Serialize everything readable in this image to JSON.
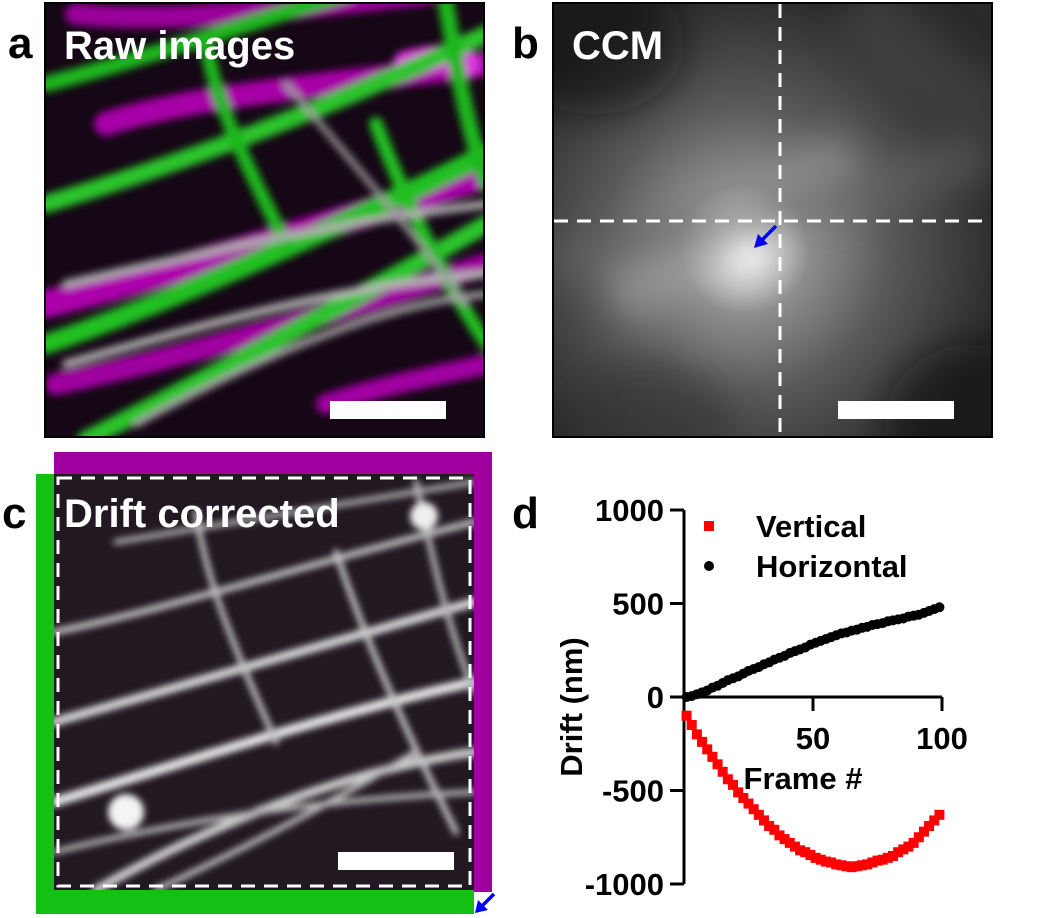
{
  "panels": {
    "a": {
      "letter": "a",
      "title": "Raw images"
    },
    "b": {
      "letter": "b",
      "title": "CCM"
    },
    "c": {
      "letter": "c",
      "title": "Drift corrected"
    },
    "d": {
      "letter": "d"
    }
  },
  "colors": {
    "magenta": "#d000d0",
    "green": "#20e020",
    "arrow": "#0000ff",
    "vertical": "#ff0000",
    "horizontal": "#000000"
  },
  "chart_data": {
    "type": "scatter",
    "xlabel": "Frame #",
    "ylabel": "Drift (nm)",
    "xlim": [
      0,
      100
    ],
    "ylim": [
      -1000,
      1000
    ],
    "x_ticks": [
      50,
      100
    ],
    "y_ticks": [
      1000,
      500,
      0,
      -500,
      -1000
    ],
    "legend_position": "top",
    "series": [
      {
        "name": "Vertical",
        "marker": "square",
        "color": "#ff0000",
        "x": [
          1,
          3,
          5,
          7,
          9,
          11,
          13,
          15,
          17,
          19,
          21,
          23,
          25,
          27,
          29,
          31,
          33,
          35,
          37,
          39,
          41,
          43,
          45,
          47,
          49,
          51,
          53,
          55,
          57,
          59,
          61,
          63,
          65,
          67,
          69,
          71,
          73,
          75,
          77,
          79,
          81,
          83,
          85,
          87,
          89,
          91,
          93,
          95,
          97,
          99
        ],
        "y": [
          -100,
          -150,
          -200,
          -240,
          -280,
          -320,
          -360,
          -400,
          -440,
          -470,
          -510,
          -540,
          -570,
          -600,
          -630,
          -660,
          -690,
          -710,
          -740,
          -760,
          -780,
          -800,
          -820,
          -830,
          -845,
          -860,
          -870,
          -880,
          -885,
          -895,
          -900,
          -905,
          -910,
          -905,
          -900,
          -895,
          -885,
          -875,
          -870,
          -860,
          -850,
          -830,
          -815,
          -800,
          -780,
          -750,
          -720,
          -690,
          -660,
          -630
        ]
      },
      {
        "name": "Horizontal",
        "marker": "circle",
        "color": "#000000",
        "x": [
          1,
          3,
          5,
          7,
          9,
          11,
          13,
          15,
          17,
          19,
          21,
          23,
          25,
          27,
          29,
          31,
          33,
          35,
          37,
          39,
          41,
          43,
          45,
          47,
          49,
          51,
          53,
          55,
          57,
          59,
          61,
          63,
          65,
          67,
          69,
          71,
          73,
          75,
          77,
          79,
          81,
          83,
          85,
          87,
          89,
          91,
          93,
          95,
          97,
          99
        ],
        "y": [
          0,
          5,
          15,
          25,
          35,
          50,
          60,
          75,
          90,
          100,
          110,
          125,
          140,
          150,
          160,
          175,
          185,
          200,
          210,
          220,
          235,
          245,
          255,
          265,
          280,
          290,
          300,
          310,
          320,
          330,
          340,
          345,
          355,
          360,
          370,
          375,
          385,
          390,
          395,
          405,
          410,
          415,
          420,
          430,
          435,
          440,
          450,
          460,
          470,
          480
        ]
      }
    ]
  }
}
